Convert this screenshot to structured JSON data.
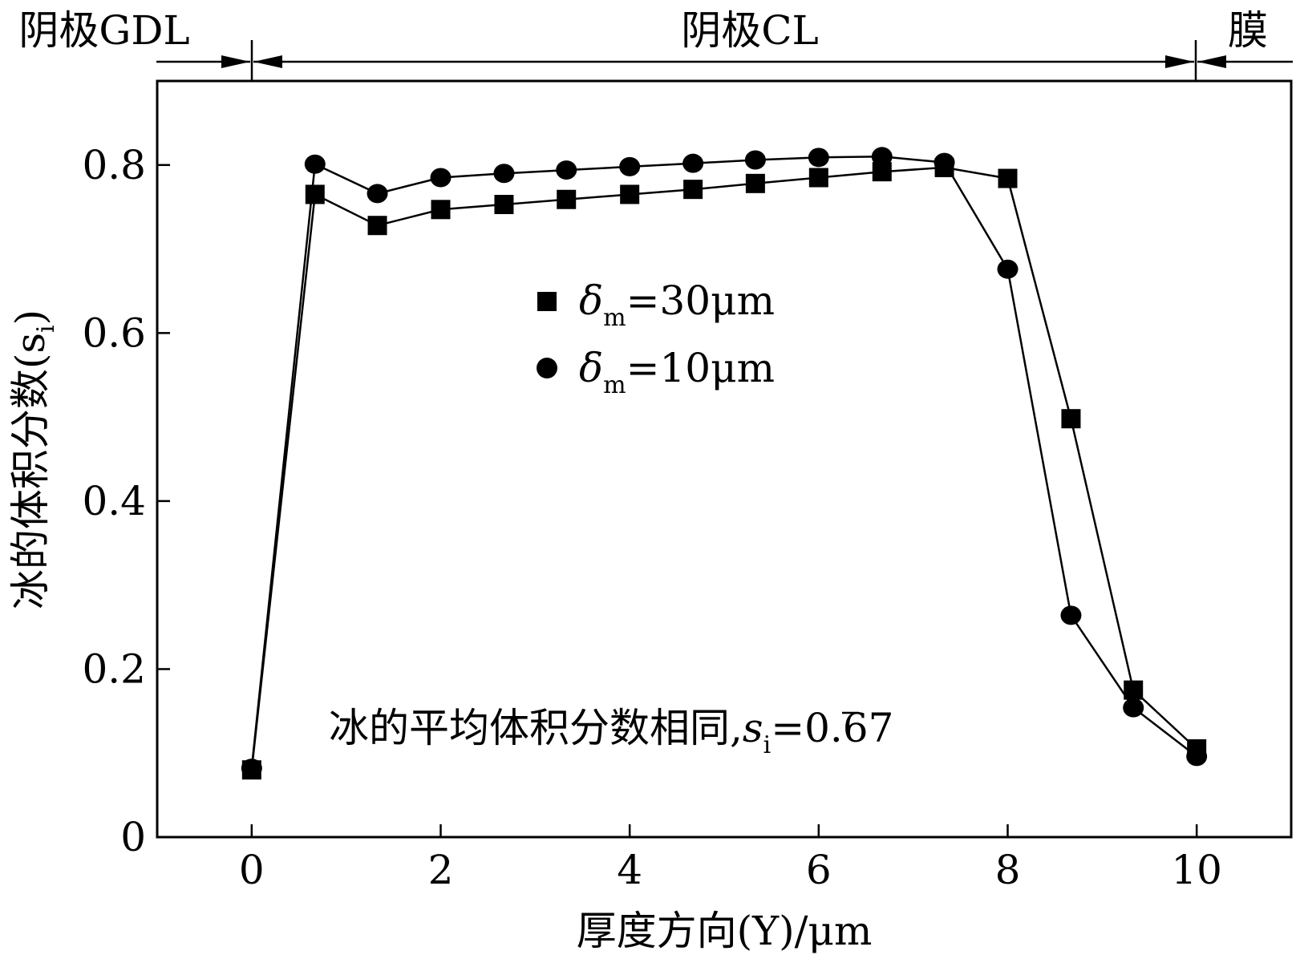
{
  "chart_data": {
    "type": "line",
    "region_labels": [
      "阴极GDL",
      "阴极CL",
      "膜"
    ],
    "xlabel": "厚度方向(Y)/μm",
    "ylabel": "冰的体积分数(s",
    "ylabel_sub": "i",
    "ylabel_close": ")",
    "xlim": [
      -1,
      11
    ],
    "ylim": [
      0,
      0.9
    ],
    "xticks": [
      0,
      2,
      4,
      6,
      8,
      10
    ],
    "xtick_labels": [
      "0",
      "2",
      "4",
      "6",
      "8",
      "10"
    ],
    "yticks": [
      0,
      0.2,
      0.4,
      0.6,
      0.8
    ],
    "ytick_labels": [
      "0",
      "0.2",
      "0.4",
      "0.6",
      "0.8"
    ],
    "annotation": {
      "text": "冰的平均体积分数相同,",
      "symbol": "s",
      "symbol_sub": "i",
      "value_text": "=0.67"
    },
    "series": [
      {
        "name": "δm=30μm",
        "legend_symbol": "δ",
        "legend_sub": "m",
        "legend_value": "=30μm",
        "marker": "square",
        "x": [
          0,
          0.67,
          1.33,
          2.0,
          2.67,
          3.33,
          4.0,
          4.67,
          5.33,
          6.0,
          6.67,
          7.33,
          8.0,
          8.67,
          9.33,
          10.0
        ],
        "y": [
          0.08,
          0.765,
          0.728,
          0.747,
          0.753,
          0.759,
          0.765,
          0.771,
          0.778,
          0.785,
          0.792,
          0.797,
          0.784,
          0.498,
          0.175,
          0.105
        ]
      },
      {
        "name": "δm=10μm",
        "legend_symbol": "δ",
        "legend_sub": "m",
        "legend_value": "=10μm",
        "marker": "circle",
        "x": [
          0,
          0.67,
          1.33,
          2.0,
          2.67,
          3.33,
          4.0,
          4.67,
          5.33,
          6.0,
          6.67,
          7.33,
          8.0,
          8.67,
          9.33,
          10.0
        ],
        "y": [
          0.082,
          0.801,
          0.766,
          0.785,
          0.79,
          0.794,
          0.798,
          0.802,
          0.806,
          0.809,
          0.81,
          0.803,
          0.676,
          0.264,
          0.154,
          0.096
        ]
      }
    ]
  }
}
